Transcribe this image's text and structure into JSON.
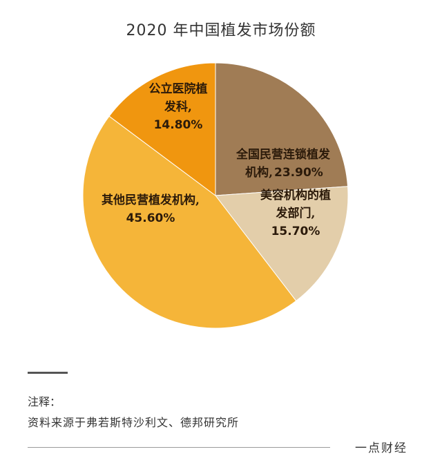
{
  "chart_data": {
    "type": "pie",
    "title": "2020 年中国植发市场份额",
    "slices": [
      {
        "label": [
          "全国民营连锁植发",
          "机构,"
        ],
        "pct_text": "23.90%",
        "value": 23.9,
        "color": "#a07c55"
      },
      {
        "label": [
          "美容机构的植",
          "发部门,"
        ],
        "pct_text": "15.70%",
        "value": 15.7,
        "color": "#e3ceaa"
      },
      {
        "label": [
          "其他民营植发机构,"
        ],
        "pct_text": "45.60%",
        "value": 45.6,
        "color": "#f5b539"
      },
      {
        "label": [
          "公立医院植",
          "发科,"
        ],
        "pct_text": "14.80%",
        "value": 14.8,
        "color": "#f0960f"
      }
    ]
  },
  "footer": {
    "note_label": "注释：",
    "note_text": "资料来源于弗若斯特沙利文、德邦研究所",
    "brand": "一点财经"
  }
}
